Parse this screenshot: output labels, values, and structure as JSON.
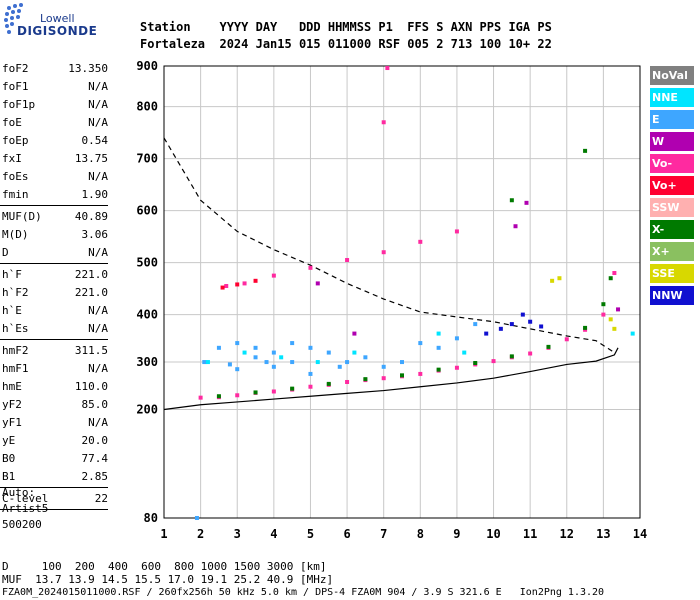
{
  "logo": {
    "top": "Lowell",
    "bottom": "DIGISONDE"
  },
  "header": {
    "labels": "Station    YYYY DAY   DDD HHMMSS P1  FFS S AXN PPS IGA PS",
    "values": "Fortaleza  2024 Jan15 015 011000 RSF 005 2 713 100 10+ 22"
  },
  "params": [
    {
      "k": "foF2",
      "v": "13.350"
    },
    {
      "k": "foF1",
      "v": "N/A"
    },
    {
      "k": "foF1p",
      "v": "N/A"
    },
    {
      "k": "foE",
      "v": "N/A"
    },
    {
      "k": "foEp",
      "v": "0.54"
    },
    {
      "k": "fxI",
      "v": "13.75"
    },
    {
      "k": "foEs",
      "v": "N/A"
    },
    {
      "k": "fmin",
      "v": "1.90"
    },
    {
      "k": "MUF(D)",
      "v": "40.89"
    },
    {
      "k": "M(D)",
      "v": "3.06"
    },
    {
      "k": "D",
      "v": "N/A"
    },
    {
      "k": "h`F",
      "v": "221.0"
    },
    {
      "k": "h`F2",
      "v": "221.0"
    },
    {
      "k": "h`E",
      "v": "N/A"
    },
    {
      "k": "h`Es",
      "v": "N/A"
    },
    {
      "k": "hmF2",
      "v": "311.5"
    },
    {
      "k": "hmF1",
      "v": "N/A"
    },
    {
      "k": "hmE",
      "v": "110.0"
    },
    {
      "k": "yF2",
      "v": "85.0"
    },
    {
      "k": "yF1",
      "v": "N/A"
    },
    {
      "k": "yE",
      "v": "20.0"
    },
    {
      "k": "B0",
      "v": "77.4"
    },
    {
      "k": "B1",
      "v": "2.85"
    },
    {
      "k": "C-level",
      "v": "22"
    }
  ],
  "extra": [
    "Auto:",
    "Artist5",
    "500200"
  ],
  "legend": [
    {
      "label": "NoVal",
      "color": "#808080"
    },
    {
      "label": "NNE",
      "color": "#00e5ff"
    },
    {
      "label": "E",
      "color": "#3ea6ff"
    },
    {
      "label": "W",
      "color": "#b000b0"
    },
    {
      "label": "Vo-",
      "color": "#ff2aa0"
    },
    {
      "label": "Vo+",
      "color": "#ff0030"
    },
    {
      "label": "SSW",
      "color": "#ffb0b0"
    },
    {
      "label": "X-",
      "color": "#007a00"
    },
    {
      "label": "X+",
      "color": "#8ac060"
    },
    {
      "label": "SSE",
      "color": "#d8d800"
    },
    {
      "label": "NNW",
      "color": "#1010d0"
    }
  ],
  "footer": {
    "line1": "D     100  200  400  600  800 1000 1500 3000 [km]",
    "line2": "MUF  13.7 13.9 14.5 15.5 17.0 19.1 25.2 40.9 [MHz]",
    "line3": "FZA0M_2024015011000.RSF / 260fx256h 50 kHz 5.0 km / DPS-4 FZA0M 904 / 3.9 S 321.6 E   Ion2Png 1.3.20"
  },
  "chart_data": {
    "type": "scatter",
    "xlim": [
      1,
      14
    ],
    "ylim": [
      80,
      900
    ],
    "x_ticks": [
      1,
      2,
      3,
      4,
      5,
      6,
      7,
      8,
      9,
      10,
      11,
      12,
      13,
      14
    ],
    "y_ticks": [
      80,
      200,
      300,
      400,
      500,
      600,
      700,
      800,
      900
    ],
    "grid": true,
    "legend_position": "right",
    "series": [
      {
        "name": "E",
        "color": "#3ea6ff",
        "points": [
          [
            2.1,
            300
          ],
          [
            2.5,
            330
          ],
          [
            3,
            340
          ],
          [
            3.5,
            330
          ],
          [
            4,
            320
          ],
          [
            4.5,
            300
          ],
          [
            5,
            330
          ],
          [
            5.5,
            320
          ],
          [
            6,
            300
          ],
          [
            6.5,
            310
          ],
          [
            7,
            290
          ],
          [
            7.5,
            300
          ],
          [
            8,
            340
          ],
          [
            8.5,
            330
          ],
          [
            9,
            350
          ],
          [
            9.5,
            380
          ],
          [
            3,
            285
          ],
          [
            4,
            290
          ],
          [
            5,
            275
          ],
          [
            3.5,
            310
          ],
          [
            4.5,
            340
          ],
          [
            2.8,
            295
          ],
          [
            3.8,
            300
          ],
          [
            5.8,
            290
          ],
          [
            1.9,
            80
          ]
        ]
      },
      {
        "name": "NNE",
        "color": "#00e5ff",
        "points": [
          [
            2.2,
            300
          ],
          [
            3.2,
            320
          ],
          [
            4.2,
            310
          ],
          [
            5.2,
            300
          ],
          [
            6.2,
            320
          ],
          [
            8.5,
            360
          ],
          [
            9.2,
            320
          ],
          [
            13.8,
            360
          ]
        ]
      },
      {
        "name": "Vo-",
        "color": "#ff2aa0",
        "points": [
          [
            2,
            225
          ],
          [
            2.5,
            226
          ],
          [
            3,
            230
          ],
          [
            3.5,
            235
          ],
          [
            4,
            238
          ],
          [
            4.5,
            242
          ],
          [
            5,
            248
          ],
          [
            5.5,
            252
          ],
          [
            6,
            258
          ],
          [
            6.5,
            262
          ],
          [
            7,
            266
          ],
          [
            7.5,
            270
          ],
          [
            8,
            275
          ],
          [
            8.5,
            282
          ],
          [
            9,
            288
          ],
          [
            9.5,
            295
          ],
          [
            10,
            302
          ],
          [
            10.5,
            310
          ],
          [
            11,
            318
          ],
          [
            11.5,
            330
          ],
          [
            12,
            348
          ],
          [
            12.5,
            368
          ],
          [
            13,
            400
          ],
          [
            13.3,
            480
          ],
          [
            2.7,
            455
          ],
          [
            3.2,
            460
          ],
          [
            4,
            475
          ],
          [
            5,
            490
          ],
          [
            6,
            505
          ],
          [
            7,
            520
          ],
          [
            8,
            540
          ],
          [
            9,
            560
          ],
          [
            7,
            770
          ],
          [
            7.1,
            895
          ]
        ]
      },
      {
        "name": "Vo+",
        "color": "#ff0030",
        "points": [
          [
            2.6,
            452
          ],
          [
            3,
            458
          ],
          [
            3.5,
            465
          ]
        ]
      },
      {
        "name": "X-",
        "color": "#007a00",
        "points": [
          [
            2.5,
            228
          ],
          [
            3.5,
            236
          ],
          [
            4.5,
            244
          ],
          [
            5.5,
            254
          ],
          [
            6.5,
            264
          ],
          [
            7.5,
            272
          ],
          [
            8.5,
            284
          ],
          [
            9.5,
            298
          ],
          [
            10.5,
            312
          ],
          [
            11.5,
            332
          ],
          [
            12.5,
            372
          ],
          [
            13,
            420
          ],
          [
            13.2,
            470
          ],
          [
            12.5,
            715
          ],
          [
            10.5,
            620
          ]
        ]
      },
      {
        "name": "NNW",
        "color": "#1010d0",
        "points": [
          [
            10.2,
            370
          ],
          [
            10.5,
            380
          ],
          [
            11,
            385
          ],
          [
            11.3,
            375
          ],
          [
            10.8,
            400
          ],
          [
            9.8,
            360
          ]
        ]
      },
      {
        "name": "SSE",
        "color": "#d8d800",
        "points": [
          [
            11.6,
            465
          ],
          [
            11.8,
            470
          ],
          [
            13.2,
            390
          ],
          [
            13.3,
            370
          ]
        ]
      },
      {
        "name": "W",
        "color": "#b000b0",
        "points": [
          [
            5.2,
            460
          ],
          [
            6.2,
            360
          ],
          [
            10.6,
            570
          ],
          [
            10.9,
            615
          ],
          [
            13.4,
            410
          ]
        ]
      }
    ]
  }
}
